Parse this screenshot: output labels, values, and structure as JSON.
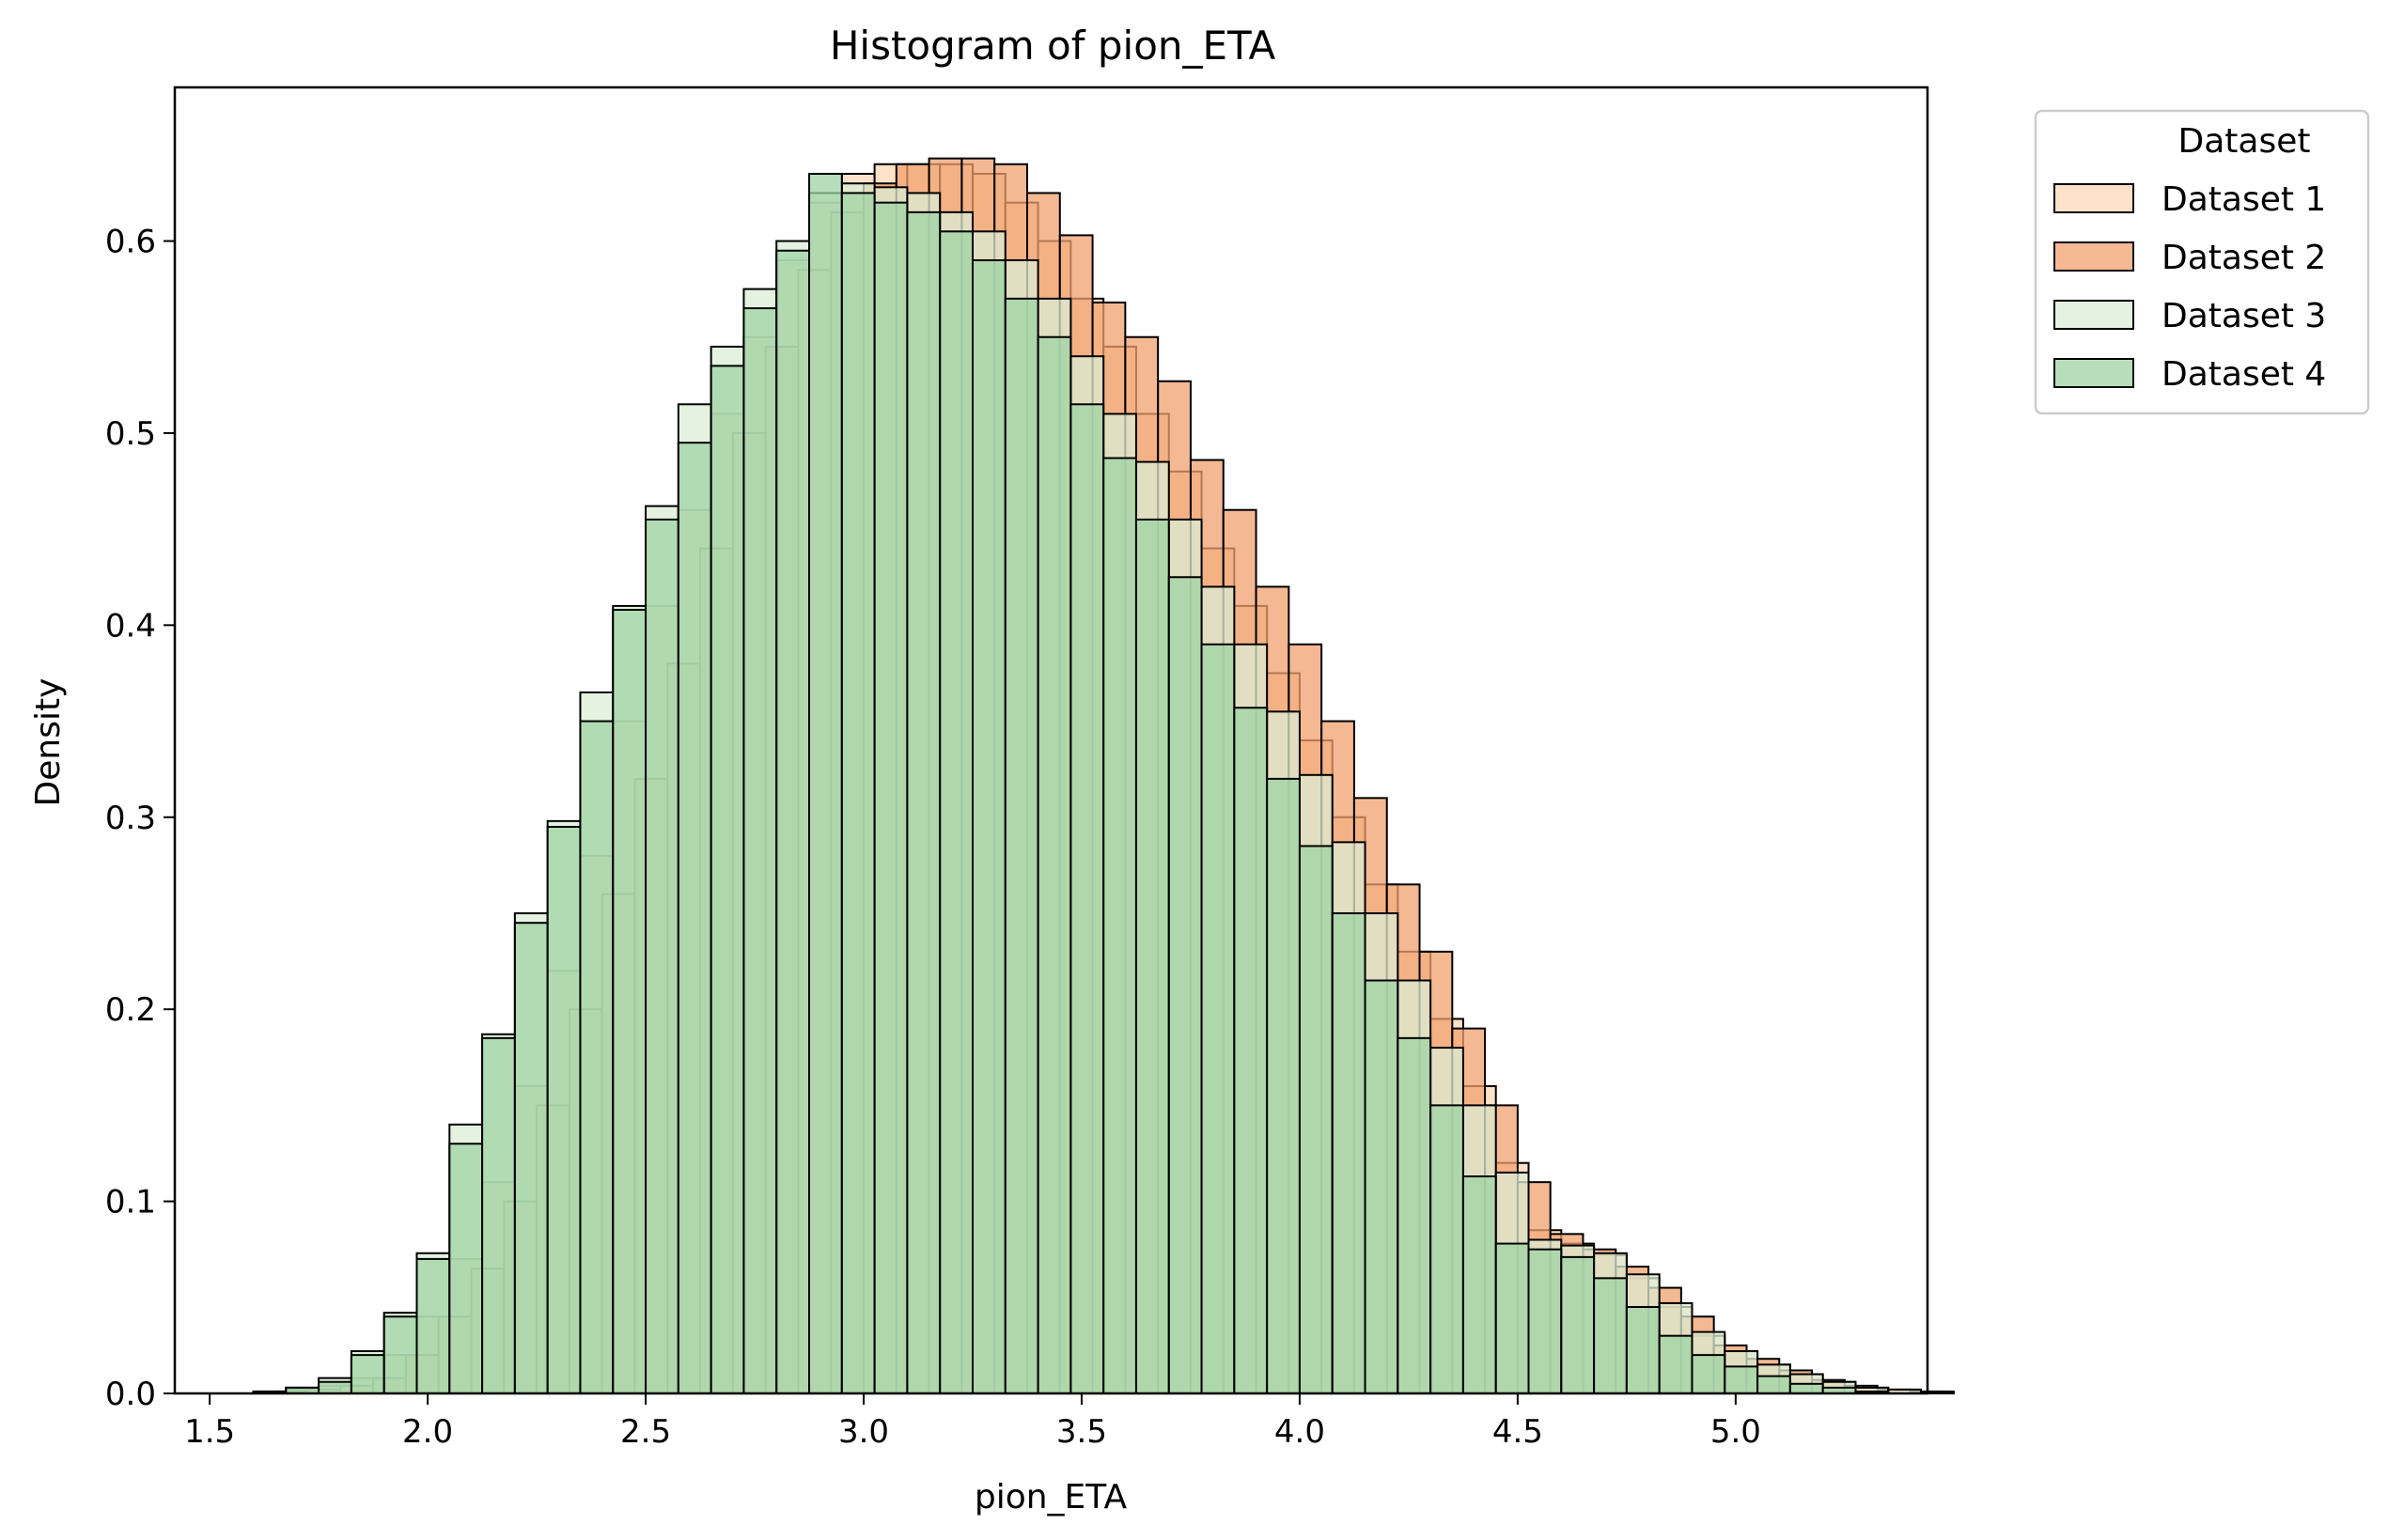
{
  "chart_data": {
    "type": "histogram",
    "title": "Histogram of pion_ETA",
    "xlabel": "pion_ETA",
    "ylabel": "Density",
    "xlim": [
      1.42,
      5.44
    ],
    "ylim": [
      0,
      0.68
    ],
    "xticks": [
      "1.5",
      "2.0",
      "2.5",
      "3.0",
      "3.5",
      "4.0",
      "4.5",
      "5.0"
    ],
    "yticks": [
      "0.0",
      "0.1",
      "0.2",
      "0.3",
      "0.4",
      "0.5",
      "0.6"
    ],
    "legend": {
      "title": "Dataset",
      "position": "outside-top-right"
    },
    "series": [
      {
        "name": "Dataset 1",
        "color": "#fcd7b5",
        "bin_start": 1.6,
        "bin_width": 0.075,
        "values": [
          0.001,
          0.002,
          0.004,
          0.008,
          0.02,
          0.04,
          0.07,
          0.11,
          0.16,
          0.22,
          0.28,
          0.35,
          0.41,
          0.46,
          0.51,
          0.55,
          0.59,
          0.62,
          0.635,
          0.64,
          0.64,
          0.64,
          0.635,
          0.62,
          0.6,
          0.57,
          0.545,
          0.51,
          0.48,
          0.44,
          0.41,
          0.375,
          0.34,
          0.3,
          0.265,
          0.23,
          0.195,
          0.16,
          0.12,
          0.085,
          0.078,
          0.072,
          0.06,
          0.045,
          0.03,
          0.022,
          0.015,
          0.01,
          0.006,
          0.003,
          0.002,
          0.001
        ]
      },
      {
        "name": "Dataset 2",
        "color": "#f0a06d",
        "bin_start": 1.65,
        "bin_width": 0.075,
        "values": [
          0.001,
          0.002,
          0.004,
          0.008,
          0.02,
          0.04,
          0.065,
          0.1,
          0.15,
          0.2,
          0.26,
          0.32,
          0.38,
          0.44,
          0.5,
          0.545,
          0.585,
          0.615,
          0.63,
          0.64,
          0.643,
          0.643,
          0.64,
          0.625,
          0.603,
          0.568,
          0.55,
          0.527,
          0.486,
          0.46,
          0.42,
          0.39,
          0.35,
          0.31,
          0.265,
          0.23,
          0.19,
          0.15,
          0.11,
          0.083,
          0.075,
          0.066,
          0.055,
          0.04,
          0.025,
          0.018,
          0.012,
          0.007,
          0.004,
          0.002,
          0.001
        ]
      },
      {
        "name": "Dataset 3",
        "color": "#dcedd6",
        "bin_start": 1.6,
        "bin_width": 0.075,
        "values": [
          0.001,
          0.003,
          0.008,
          0.022,
          0.042,
          0.073,
          0.14,
          0.187,
          0.25,
          0.298,
          0.365,
          0.41,
          0.462,
          0.515,
          0.545,
          0.575,
          0.6,
          0.625,
          0.63,
          0.628,
          0.625,
          0.615,
          0.605,
          0.59,
          0.57,
          0.54,
          0.51,
          0.485,
          0.455,
          0.42,
          0.39,
          0.355,
          0.322,
          0.287,
          0.25,
          0.215,
          0.18,
          0.15,
          0.115,
          0.08,
          0.077,
          0.073,
          0.062,
          0.047,
          0.032,
          0.022,
          0.015,
          0.01,
          0.006,
          0.003,
          0.002,
          0.001
        ]
      },
      {
        "name": "Dataset 4",
        "color": "#9fd3a4",
        "bin_start": 1.6,
        "bin_width": 0.075,
        "values": [
          0.001,
          0.003,
          0.006,
          0.02,
          0.04,
          0.07,
          0.13,
          0.185,
          0.245,
          0.295,
          0.35,
          0.408,
          0.455,
          0.495,
          0.535,
          0.565,
          0.595,
          0.635,
          0.625,
          0.62,
          0.615,
          0.605,
          0.59,
          0.57,
          0.55,
          0.515,
          0.487,
          0.455,
          0.425,
          0.39,
          0.357,
          0.32,
          0.285,
          0.25,
          0.215,
          0.185,
          0.15,
          0.113,
          0.078,
          0.075,
          0.071,
          0.06,
          0.045,
          0.03,
          0.02,
          0.014,
          0.009,
          0.005,
          0.003,
          0.001
        ]
      }
    ]
  }
}
